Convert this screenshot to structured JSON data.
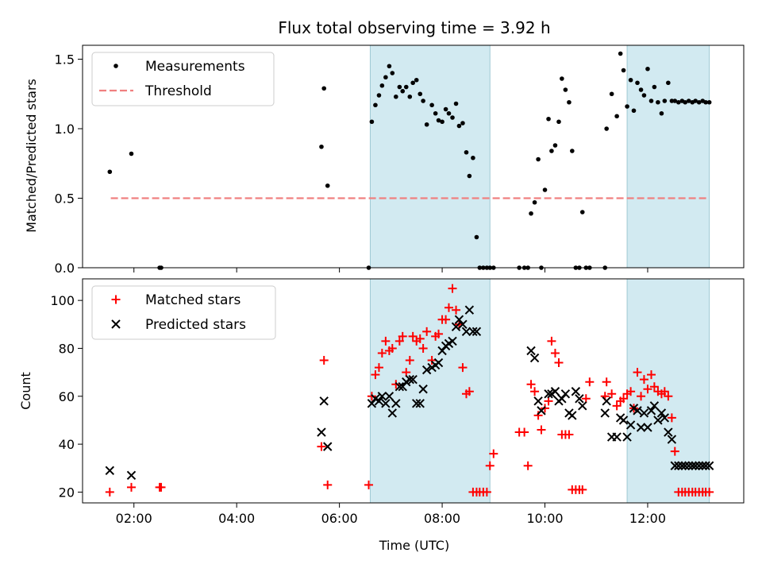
{
  "chart_data": [
    {
      "type": "scatter",
      "panel": "top",
      "title": "Flux total observing time = 3.92 h",
      "xlabel": "",
      "ylabel": "Matched/Predicted stars",
      "ylim": [
        0,
        1.6
      ],
      "yticks": [
        0.0,
        0.5,
        1.0,
        1.5
      ],
      "ytick_labels": [
        "0.0",
        "0.5",
        "1.0",
        "1.5"
      ],
      "xlim": [
        1.0,
        13.87
      ],
      "grid": false,
      "legend": "top-left",
      "shaded_regions": [
        [
          6.6,
          8.93
        ],
        [
          11.6,
          13.2
        ]
      ],
      "colors": {
        "measurements": "#000000",
        "threshold": "#f08080",
        "shade": "#add8e6"
      },
      "series": [
        {
          "name": "Measurements",
          "marker": "dot",
          "x": [
            1.53,
            1.95,
            2.5,
            2.53,
            5.65,
            5.7,
            5.77,
            6.57,
            6.63,
            6.7,
            6.77,
            6.83,
            6.9,
            6.97,
            7.03,
            7.1,
            7.17,
            7.23,
            7.3,
            7.37,
            7.43,
            7.5,
            7.57,
            7.63,
            7.7,
            7.8,
            7.87,
            7.93,
            8.0,
            8.07,
            8.13,
            8.2,
            8.27,
            8.33,
            8.4,
            8.47,
            8.53,
            8.6,
            8.67,
            8.73,
            8.8,
            8.87,
            8.93,
            9.0,
            9.5,
            9.6,
            9.67,
            9.73,
            9.8,
            9.87,
            9.93,
            10.0,
            10.07,
            10.13,
            10.2,
            10.27,
            10.33,
            10.4,
            10.47,
            10.53,
            10.6,
            10.67,
            10.73,
            10.8,
            10.87,
            11.17,
            11.2,
            11.3,
            11.4,
            11.47,
            11.53,
            11.6,
            11.67,
            11.73,
            11.8,
            11.87,
            11.93,
            12.0,
            12.07,
            12.13,
            12.2,
            12.27,
            12.33,
            12.4,
            12.47,
            12.53,
            12.6,
            12.67,
            12.73,
            12.8,
            12.87,
            12.93,
            13.0,
            13.07,
            13.13,
            13.2
          ],
          "y": [
            0.69,
            0.82,
            0.0,
            0.0,
            0.87,
            1.29,
            0.59,
            0.0,
            1.05,
            1.17,
            1.24,
            1.31,
            1.37,
            1.45,
            1.4,
            1.23,
            1.3,
            1.27,
            1.3,
            1.23,
            1.33,
            1.35,
            1.25,
            1.2,
            1.03,
            1.17,
            1.11,
            1.06,
            1.05,
            1.14,
            1.11,
            1.08,
            1.18,
            1.02,
            1.04,
            0.83,
            0.66,
            0.79,
            0.22,
            0.0,
            0.0,
            0.0,
            0.0,
            0.0,
            0.0,
            0.0,
            0.0,
            0.39,
            0.47,
            0.78,
            0.0,
            0.56,
            1.07,
            0.84,
            0.88,
            1.05,
            1.36,
            1.28,
            1.19,
            0.84,
            0.0,
            0.0,
            0.4,
            0.0,
            0.0,
            0.0,
            1.0,
            1.25,
            1.09,
            1.54,
            1.42,
            1.16,
            1.35,
            1.13,
            1.33,
            1.28,
            1.24,
            1.43,
            1.2,
            1.3,
            1.19,
            1.11,
            1.2,
            1.33,
            1.2,
            1.2,
            1.19,
            1.2,
            1.19,
            1.2,
            1.19,
            1.2,
            1.19,
            1.2,
            1.19,
            1.19
          ]
        },
        {
          "name": "Threshold",
          "marker": "dashed-line",
          "x": [
            1.55,
            13.2
          ],
          "y": [
            0.5,
            0.5
          ]
        }
      ]
    },
    {
      "type": "scatter",
      "panel": "bottom",
      "title": "",
      "xlabel": "Time (UTC)",
      "ylabel": "Count",
      "ylim": [
        15.5,
        109
      ],
      "yticks": [
        20,
        40,
        60,
        80,
        100
      ],
      "ytick_labels": [
        "20",
        "40",
        "60",
        "80",
        "100"
      ],
      "xlim": [
        1.0,
        13.87
      ],
      "xticks": [
        2,
        4,
        6,
        8,
        10,
        12
      ],
      "xtick_labels": [
        "02:00",
        "04:00",
        "06:00",
        "08:00",
        "10:00",
        "12:00"
      ],
      "grid": false,
      "legend": "top-left",
      "shaded_regions": [
        [
          6.6,
          8.93
        ],
        [
          11.6,
          13.2
        ]
      ],
      "colors": {
        "matched": "#ff0000",
        "predicted": "#000000",
        "shade": "#add8e6"
      },
      "series": [
        {
          "name": "Matched stars",
          "marker": "plus",
          "x": [
            1.53,
            1.95,
            2.5,
            2.53,
            5.65,
            5.7,
            5.77,
            6.57,
            6.63,
            6.7,
            6.77,
            6.83,
            6.9,
            6.97,
            7.03,
            7.1,
            7.17,
            7.23,
            7.3,
            7.37,
            7.43,
            7.5,
            7.57,
            7.63,
            7.7,
            7.8,
            7.87,
            7.93,
            8.0,
            8.07,
            8.13,
            8.2,
            8.27,
            8.33,
            8.4,
            8.47,
            8.53,
            8.6,
            8.67,
            8.73,
            8.8,
            8.87,
            8.93,
            9.0,
            9.5,
            9.6,
            9.67,
            9.73,
            9.8,
            9.87,
            9.93,
            10.0,
            10.07,
            10.13,
            10.2,
            10.27,
            10.33,
            10.4,
            10.47,
            10.53,
            10.6,
            10.67,
            10.73,
            10.8,
            10.87,
            11.17,
            11.2,
            11.3,
            11.4,
            11.47,
            11.53,
            11.6,
            11.67,
            11.73,
            11.8,
            11.87,
            11.93,
            12.0,
            12.07,
            12.13,
            12.2,
            12.27,
            12.33,
            12.4,
            12.47,
            12.53,
            12.6,
            12.67,
            12.73,
            12.8,
            12.87,
            12.93,
            13.0,
            13.07,
            13.13,
            13.2
          ],
          "y": [
            20,
            22,
            22,
            22,
            39,
            75,
            23,
            23,
            60,
            69,
            72,
            78,
            83,
            79,
            80,
            65,
            83,
            85,
            70,
            75,
            85,
            83,
            84,
            80,
            87,
            75,
            85,
            86,
            92,
            92,
            97,
            105,
            96,
            90,
            72,
            61,
            62,
            20,
            20,
            20,
            20,
            20,
            31,
            36,
            45,
            45,
            31,
            65,
            62,
            52,
            46,
            55,
            58,
            83,
            78,
            74,
            44,
            44,
            44,
            21,
            21,
            21,
            21,
            59,
            66,
            60,
            66,
            61,
            56,
            58,
            59,
            61,
            62,
            55,
            70,
            60,
            67,
            63,
            69,
            64,
            62,
            61,
            62,
            60,
            51,
            37,
            20,
            20,
            20,
            20,
            20,
            20,
            20,
            20,
            20,
            20
          ]
        },
        {
          "name": "Predicted stars",
          "marker": "cross",
          "x": [
            1.53,
            1.95,
            5.65,
            5.7,
            5.77,
            6.63,
            6.7,
            6.77,
            6.83,
            6.9,
            6.97,
            7.03,
            7.1,
            7.17,
            7.23,
            7.3,
            7.37,
            7.43,
            7.5,
            7.57,
            7.63,
            7.7,
            7.8,
            7.87,
            7.93,
            8.0,
            8.07,
            8.13,
            8.2,
            8.27,
            8.33,
            8.4,
            8.47,
            8.53,
            8.6,
            8.67,
            9.73,
            9.8,
            9.87,
            9.93,
            10.07,
            10.13,
            10.2,
            10.27,
            10.33,
            10.4,
            10.47,
            10.53,
            10.6,
            10.67,
            10.73,
            11.17,
            11.2,
            11.3,
            11.4,
            11.47,
            11.53,
            11.6,
            11.67,
            11.73,
            11.8,
            11.87,
            11.93,
            12.0,
            12.07,
            12.13,
            12.2,
            12.27,
            12.33,
            12.4,
            12.47,
            12.53,
            12.6,
            12.67,
            12.73,
            12.8,
            12.87,
            12.93,
            13.0,
            13.07,
            13.13,
            13.2
          ],
          "y": [
            29,
            27,
            45,
            58,
            39,
            57,
            59,
            58,
            60,
            57,
            60,
            53,
            57,
            64,
            64,
            66,
            67,
            67,
            57,
            57,
            63,
            71,
            72,
            73,
            74,
            79,
            81,
            82,
            83,
            89,
            92,
            90,
            87,
            96,
            87,
            87,
            79,
            76,
            58,
            54,
            61,
            61,
            62,
            58,
            59,
            61,
            53,
            52,
            62,
            59,
            56,
            53,
            58,
            43,
            43,
            51,
            50,
            43,
            48,
            55,
            54,
            47,
            53,
            47,
            54,
            56,
            50,
            53,
            51,
            45,
            42,
            31,
            31,
            31,
            31,
            31,
            31,
            31,
            31,
            31,
            31,
            31
          ]
        }
      ]
    }
  ]
}
